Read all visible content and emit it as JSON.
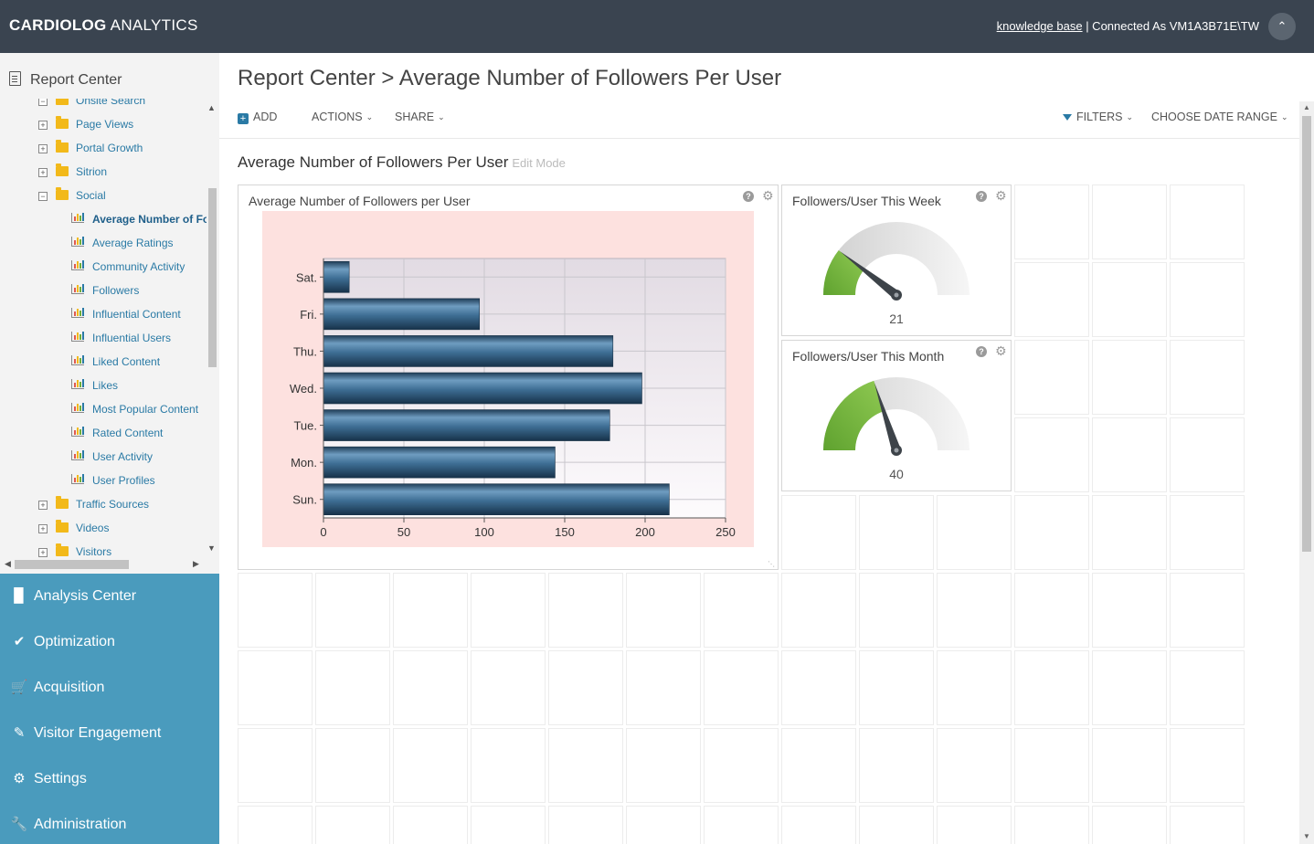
{
  "app": {
    "brand_bold": "CARDIOLOG",
    "brand_rest": " ANALYTICS",
    "knowledge_base": "knowledge base",
    "connected_as": " | Connected As VM1A3B71E\\TW"
  },
  "sidebar": {
    "header": "Report Center",
    "tree": [
      {
        "label": "Onsite Search",
        "kind": "folder",
        "level": 0,
        "expanded": true
      },
      {
        "label": "Page Views",
        "kind": "folder",
        "level": 0
      },
      {
        "label": "Portal Growth",
        "kind": "folder",
        "level": 0
      },
      {
        "label": "Sitrion",
        "kind": "folder",
        "level": 0
      },
      {
        "label": "Social",
        "kind": "folder",
        "level": 0,
        "expanded": true
      },
      {
        "label": "Average Number of Fo",
        "kind": "report",
        "level": 1,
        "active": true
      },
      {
        "label": "Average Ratings",
        "kind": "report",
        "level": 1
      },
      {
        "label": "Community Activity",
        "kind": "report",
        "level": 1
      },
      {
        "label": "Followers",
        "kind": "report",
        "level": 1
      },
      {
        "label": "Influential Content",
        "kind": "report",
        "level": 1
      },
      {
        "label": "Influential Users",
        "kind": "report",
        "level": 1
      },
      {
        "label": "Liked Content",
        "kind": "report",
        "level": 1
      },
      {
        "label": "Likes",
        "kind": "report",
        "level": 1
      },
      {
        "label": "Most Popular Content",
        "kind": "report",
        "level": 1
      },
      {
        "label": "Rated Content",
        "kind": "report",
        "level": 1
      },
      {
        "label": "User Activity",
        "kind": "report",
        "level": 1
      },
      {
        "label": "User Profiles",
        "kind": "report",
        "level": 1
      },
      {
        "label": "Traffic Sources",
        "kind": "folder",
        "level": 0
      },
      {
        "label": "Videos",
        "kind": "folder",
        "level": 0
      },
      {
        "label": "Visitors",
        "kind": "folder",
        "level": 0
      }
    ],
    "nav": [
      {
        "label": "Analysis Center",
        "icon": "bar-chart-icon"
      },
      {
        "label": "Optimization",
        "icon": "check-icon"
      },
      {
        "label": "Acquisition",
        "icon": "cart-icon"
      },
      {
        "label": "Visitor Engagement",
        "icon": "pencil-icon"
      },
      {
        "label": "Settings",
        "icon": "gears-icon"
      },
      {
        "label": "Administration",
        "icon": "wrench-icon"
      }
    ]
  },
  "page": {
    "breadcrumb": "Report Center > Average Number of Followers Per User",
    "toolbar": {
      "add": "ADD",
      "actions": "ACTIONS",
      "share": "SHARE",
      "filters": "FILTERS",
      "date_range": "CHOOSE DATE RANGE"
    },
    "dashboard_title": "Average Number of Followers Per User",
    "edit_mode": "Edit Mode"
  },
  "widgets": {
    "bar_chart_title": "Average Number of Followers per User",
    "week_title": "Followers/User This Week",
    "week_value": "21",
    "month_title": "Followers/User This Month",
    "month_value": "40"
  },
  "gauges": {
    "max": 100,
    "week": 21,
    "month": 40
  },
  "colors": {
    "topbar": "#3a4450",
    "nav": "#4a9bbd",
    "link": "#2a7aa5",
    "chart_bg": "#fde1df",
    "gauge_fill": "#6fae3c"
  },
  "chart_data": {
    "type": "bar",
    "orientation": "horizontal",
    "categories": [
      "Sat.",
      "Fri.",
      "Thu.",
      "Wed.",
      "Tue.",
      "Mon.",
      "Sun."
    ],
    "values": [
      16,
      97,
      180,
      198,
      178,
      144,
      215
    ],
    "xlim": [
      0,
      250
    ],
    "xticks": [
      0,
      50,
      100,
      150,
      200,
      250
    ],
    "grid": true
  }
}
